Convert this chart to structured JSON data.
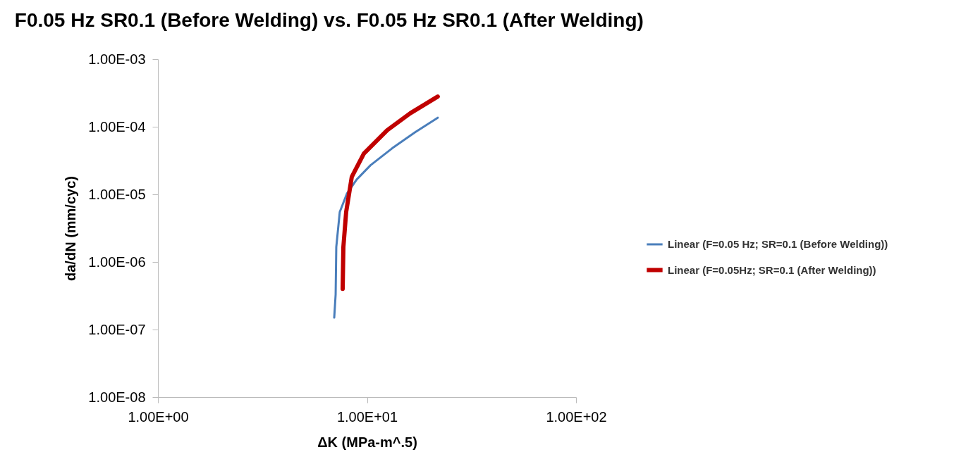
{
  "chart_data": {
    "type": "line",
    "title": "F0.05 Hz SR0.1 (Before Welding) vs. F0.05 Hz SR0.1 (After Welding)",
    "xlabel": "ΔK (MPa-m^.5)",
    "ylabel": "da/dN (mm/cyc)",
    "log": "xy",
    "grid": false,
    "legend": "right",
    "marker": "none",
    "line_style": "solid",
    "xlim": [
      1,
      100
    ],
    "xticks": [
      {
        "value": 1,
        "label": "1.00E+00"
      },
      {
        "value": 10,
        "label": "1.00E+01"
      },
      {
        "value": 100,
        "label": "1.00E+02"
      }
    ],
    "ylim": [
      1e-08,
      0.001
    ],
    "yticks": [
      {
        "value": 1e-08,
        "label": "1.00E-08"
      },
      {
        "value": 1e-07,
        "label": "1.00E-07"
      },
      {
        "value": 1e-06,
        "label": "1.00E-06"
      },
      {
        "value": 1e-05,
        "label": "1.00E-05"
      },
      {
        "value": 0.0001,
        "label": "1.00E-04"
      },
      {
        "value": 0.001,
        "label": "1.00E-03"
      }
    ],
    "series": [
      {
        "name": "Linear (F=0.05 Hz; SR=0.1 (Before Welding))",
        "color": "#4a7ebb",
        "x": [
          6.97,
          7.08,
          7.13,
          7.41,
          8.01,
          8.93,
          10.4,
          13.2,
          17.0,
          21.8
        ],
        "values": [
          1.5e-07,
          3.3e-07,
          1.66e-06,
          5.5e-06,
          1.02e-05,
          1.66e-05,
          2.7e-05,
          4.8e-05,
          8.3e-05,
          0.000136
        ]
      },
      {
        "name": "Linear (F=0.05Hz; SR=0.1 (After Welding))",
        "color": "#c00000",
        "x": [
          7.65,
          7.71,
          7.95,
          8.46,
          9.66,
          12.5,
          16.1,
          21.8
        ],
        "values": [
          4e-07,
          1.66e-06,
          5.5e-06,
          1.82e-05,
          4e-05,
          8.9e-05,
          0.000158,
          0.00028
        ]
      }
    ]
  }
}
